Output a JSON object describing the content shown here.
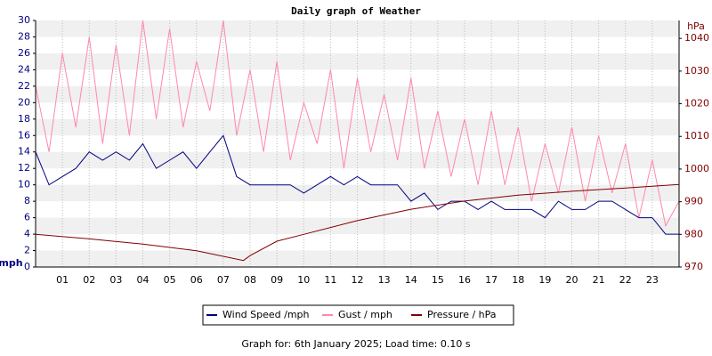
{
  "chart_data": {
    "type": "line",
    "title": "Daily graph of Weather",
    "ylabel": "mph",
    "y2label": "hPa",
    "footer": "Graph for: 6th January 2025; Load time: 0.10 s",
    "xlim": [
      0,
      24
    ],
    "xticks": [
      {
        "value": 1,
        "label": "01"
      },
      {
        "value": 2,
        "label": "02"
      },
      {
        "value": 3,
        "label": "03"
      },
      {
        "value": 4,
        "label": "04"
      },
      {
        "value": 5,
        "label": "05"
      },
      {
        "value": 6,
        "label": "06"
      },
      {
        "value": 7,
        "label": "07"
      },
      {
        "value": 8,
        "label": "08"
      },
      {
        "value": 9,
        "label": "09"
      },
      {
        "value": 10,
        "label": "10"
      },
      {
        "value": 11,
        "label": "11"
      },
      {
        "value": 12,
        "label": "12"
      },
      {
        "value": 13,
        "label": "13"
      },
      {
        "value": 14,
        "label": "14"
      },
      {
        "value": 15,
        "label": "15"
      },
      {
        "value": 16,
        "label": "16"
      },
      {
        "value": 17,
        "label": "17"
      },
      {
        "value": 18,
        "label": "18"
      },
      {
        "value": 19,
        "label": "19"
      },
      {
        "value": 20,
        "label": "20"
      },
      {
        "value": 21,
        "label": "21"
      },
      {
        "value": 22,
        "label": "22"
      },
      {
        "value": 23,
        "label": "23"
      }
    ],
    "ylim": [
      0,
      30
    ],
    "yticks": [
      0,
      2,
      4,
      6,
      8,
      10,
      12,
      14,
      16,
      18,
      20,
      22,
      24,
      26,
      28,
      30
    ],
    "y2lim": [
      970,
      1045.5
    ],
    "y2ticks": [
      970,
      980,
      990,
      1000,
      1010,
      1020,
      1030,
      1040
    ],
    "grid": true,
    "series": [
      {
        "name": "Wind Speed /mph",
        "color": "#000080",
        "x": [
          0,
          0.5,
          1,
          1.5,
          2,
          2.5,
          3,
          3.5,
          4,
          4.5,
          5,
          5.5,
          6,
          6.5,
          7,
          7.5,
          8,
          8.5,
          9,
          9.5,
          10,
          10.5,
          11,
          11.5,
          12,
          12.5,
          13,
          13.5,
          14,
          14.5,
          15,
          15.5,
          16,
          16.5,
          17,
          17.5,
          18,
          18.5,
          19,
          19.5,
          20,
          20.5,
          21,
          21.5,
          22,
          22.5,
          23,
          23.5,
          24
        ],
        "values": [
          14,
          10,
          11,
          12,
          14,
          13,
          14,
          13,
          15,
          12,
          13,
          14,
          12,
          14,
          16,
          11,
          10,
          10,
          10,
          10,
          9,
          10,
          11,
          10,
          11,
          10,
          10,
          10,
          8,
          9,
          7,
          8,
          8,
          7,
          8,
          7,
          7,
          7,
          6,
          8,
          7,
          7,
          8,
          8,
          7,
          6,
          6,
          4,
          4
        ]
      },
      {
        "name": "Gust / mph",
        "color": "#ff88aa",
        "x": [
          0,
          0.5,
          1,
          1.5,
          2,
          2.5,
          3,
          3.5,
          4,
          4.5,
          5,
          5.5,
          6,
          6.5,
          7,
          7.5,
          8,
          8.5,
          9,
          9.5,
          10,
          10.5,
          11,
          11.5,
          12,
          12.5,
          13,
          13.5,
          14,
          14.5,
          15,
          15.5,
          16,
          16.5,
          17,
          17.5,
          18,
          18.5,
          19,
          19.5,
          20,
          20.5,
          21,
          21.5,
          22,
          22.5,
          23,
          23.5,
          24
        ],
        "values": [
          22,
          14,
          26,
          17,
          28,
          15,
          27,
          16,
          30,
          18,
          29,
          17,
          25,
          19,
          30,
          16,
          24,
          14,
          25,
          13,
          20,
          15,
          24,
          12,
          23,
          14,
          21,
          13,
          23,
          12,
          19,
          11,
          18,
          10,
          19,
          10,
          17,
          8,
          15,
          9,
          17,
          8,
          16,
          9,
          15,
          6,
          13,
          5,
          8
        ]
      },
      {
        "name": "Pressure / hPa",
        "color": "#800000",
        "axis": "y2",
        "x": [
          0,
          2,
          4,
          6,
          7.75,
          8,
          9,
          10,
          12,
          14,
          16,
          18,
          20,
          22,
          24
        ],
        "values": [
          980,
          978.6,
          977,
          975,
          972,
          973.5,
          977.9,
          980,
          984.2,
          987.7,
          990.2,
          992,
          993.2,
          994.2,
          995.3
        ]
      }
    ]
  }
}
